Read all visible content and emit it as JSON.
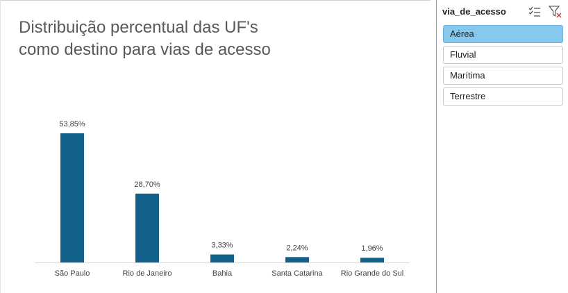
{
  "chart_data": {
    "type": "bar",
    "title_lines": [
      "Distribuição percentual das UF's",
      "como destino para vias de acesso"
    ],
    "categories": [
      "São Paulo",
      "Rio de Janeiro",
      "Bahia",
      "Santa Catarina",
      "Rio Grande do Sul"
    ],
    "values": [
      53.85,
      28.7,
      3.33,
      2.24,
      1.96
    ],
    "data_labels": [
      "53,85%",
      "28,70%",
      "3,33%",
      "2,24%",
      "1,96%"
    ],
    "ylim": [
      0,
      60
    ],
    "bar_color": "#11618a",
    "grid": false,
    "legend": "none"
  },
  "slicer": {
    "title": "via_de_acesso",
    "multi_select_icon": "multi-select-icon",
    "clear_filter_icon": "clear-filter-icon",
    "items": [
      {
        "label": "Aérea",
        "selected": true
      },
      {
        "label": "Fluvial",
        "selected": false
      },
      {
        "label": "Marítima",
        "selected": false
      },
      {
        "label": "Terrestre",
        "selected": false
      }
    ],
    "selected_color": "#86c8ee"
  }
}
